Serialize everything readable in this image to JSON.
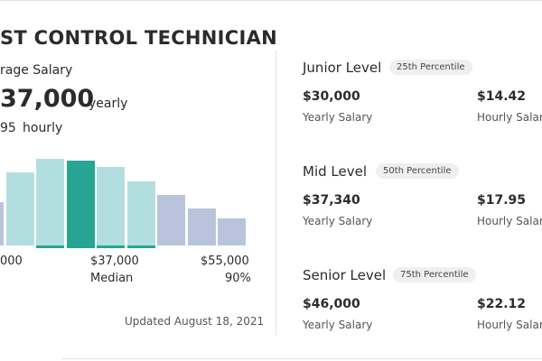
{
  "job": {
    "title": "ST CONTROL TECHNICIAN"
  },
  "average": {
    "label": "rage Salary",
    "yearly_value": "37,000",
    "yearly_unit": "yearly",
    "hourly_value": "95",
    "hourly_unit": "hourly"
  },
  "distribution": {
    "bars": [
      {
        "level": 0.43,
        "color": "#b9c4dc",
        "accent": false
      },
      {
        "level": 0.72,
        "color": "#b3dedf",
        "accent": false
      },
      {
        "level": 0.86,
        "color": "#b3dedf",
        "accent": true
      },
      {
        "level": 0.87,
        "color": "#27a593",
        "accent": false
      },
      {
        "level": 0.78,
        "color": "#b3dedf",
        "accent": true
      },
      {
        "level": 0.63,
        "color": "#b3dedf",
        "accent": true
      },
      {
        "level": 0.5,
        "color": "#b9c4dc",
        "accent": false
      },
      {
        "level": 0.37,
        "color": "#b9c4dc",
        "accent": false
      },
      {
        "level": 0.27,
        "color": "#b9c4dc",
        "accent": false
      }
    ],
    "accent_color": "#27a593",
    "left_value": "000",
    "median_value": "$37,000",
    "median_label": "Median",
    "right_value": "$55,000",
    "right_label": "90%"
  },
  "updated": "Updated August 18, 2021",
  "levels": [
    {
      "title": "Junior Level",
      "percentile": "25th Percentile",
      "yearly": "$30,000",
      "yearly_label": "Yearly Salary",
      "hourly": "$14.42",
      "hourly_label": "Hourly Salary"
    },
    {
      "title": "Mid Level",
      "percentile": "50th Percentile",
      "yearly": "$37,340",
      "yearly_label": "Yearly Salary",
      "hourly": "$17.95",
      "hourly_label": "Hourly Salary"
    },
    {
      "title": "Senior Level",
      "percentile": "75th Percentile",
      "yearly": "$46,000",
      "yearly_label": "Yearly Salary",
      "hourly": "$22.12",
      "hourly_label": "Hourly Salary"
    }
  ]
}
